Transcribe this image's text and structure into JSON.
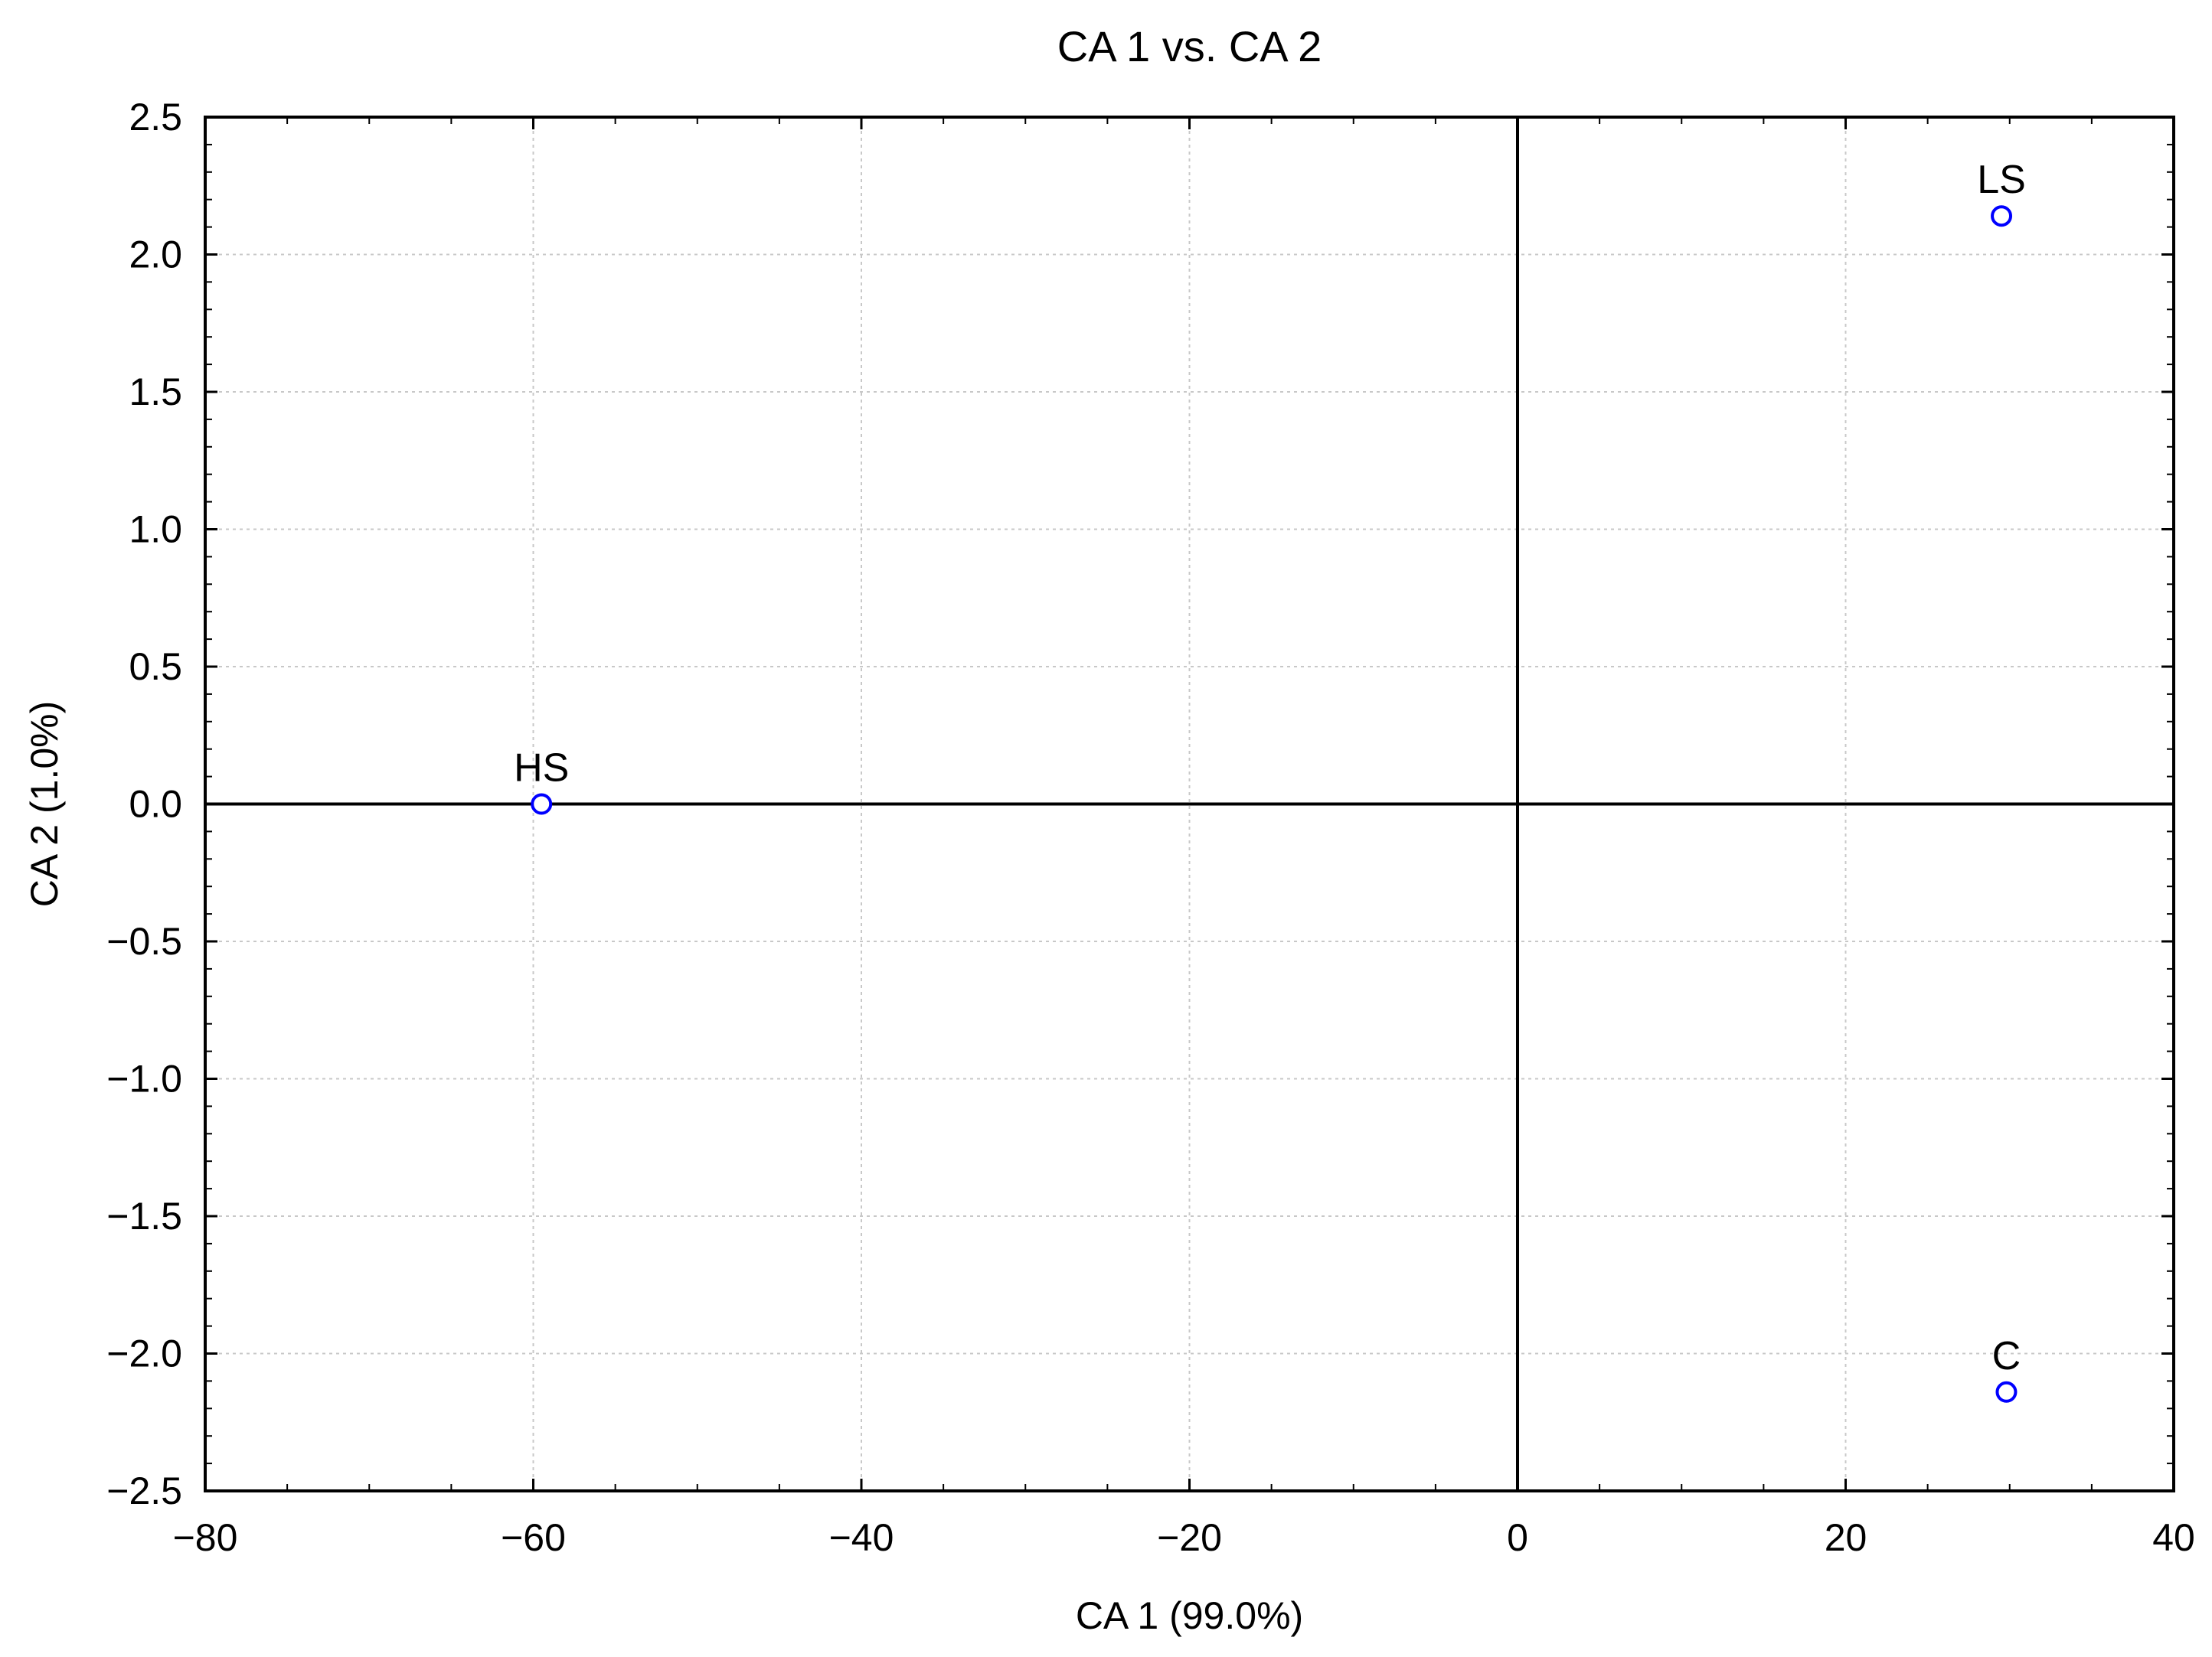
{
  "chart_data": {
    "type": "scatter",
    "title": "CA 1 vs. CA 2",
    "xlabel": "CA 1 (99.0%)",
    "ylabel": "CA 2 (1.0%)",
    "xlim": [
      -80,
      40
    ],
    "ylim": [
      -2.5,
      2.5
    ],
    "x_ticks": [
      -80,
      -60,
      -40,
      -20,
      0,
      20,
      40
    ],
    "x_tick_labels": [
      "−80",
      "−60",
      "−40",
      "−20",
      "0",
      "20",
      "40"
    ],
    "y_ticks": [
      2.5,
      2.0,
      1.5,
      1.0,
      0.5,
      0.0,
      -0.5,
      -1.0,
      -1.5,
      -2.0,
      -2.5
    ],
    "y_tick_labels": [
      "2.5",
      "2.0",
      "1.5",
      "1.0",
      "0.5",
      "0.0",
      "−0.5",
      "−1.0",
      "−1.5",
      "−2.0",
      "−2.5"
    ],
    "grid": true,
    "zero_lines": true,
    "marker_color": "#0000ff",
    "points": [
      {
        "label": "HS",
        "x": -59.5,
        "y": 0.0
      },
      {
        "label": "LS",
        "x": 29.5,
        "y": 2.14
      },
      {
        "label": "C",
        "x": 29.8,
        "y": -2.14
      }
    ]
  }
}
